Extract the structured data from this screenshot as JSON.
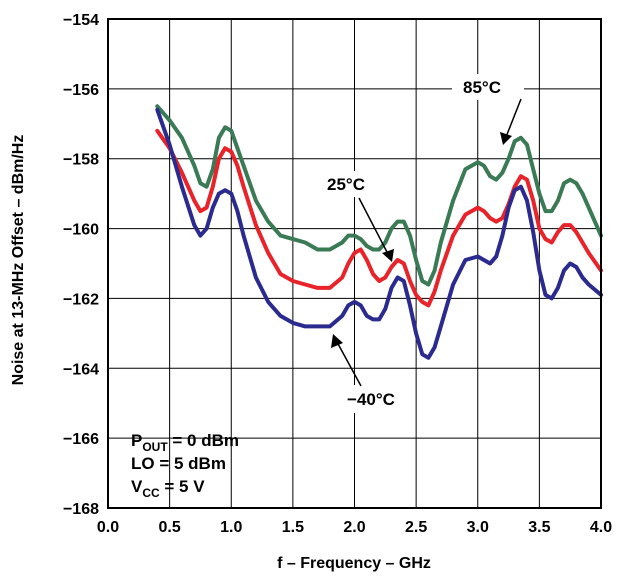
{
  "chart_data": {
    "type": "line",
    "xlabel": "f – Frequency – GHz",
    "ylabel": "Noise at 13-MHz Offset – dBm/Hz",
    "xlim": [
      0.0,
      4.0
    ],
    "ylim": [
      -168,
      -154
    ],
    "x_ticks": [
      "0.0",
      "0.5",
      "1.0",
      "1.5",
      "2.0",
      "2.5",
      "3.0",
      "3.5",
      "4.0"
    ],
    "y_ticks": [
      "−154",
      "−156",
      "−158",
      "−160",
      "−162",
      "−164",
      "−166",
      "−168"
    ],
    "grid": true,
    "series": [
      {
        "name": "85°C",
        "color": "#3a7a55",
        "x": [
          0.4,
          0.5,
          0.6,
          0.7,
          0.75,
          0.8,
          0.85,
          0.9,
          0.95,
          1.0,
          1.05,
          1.1,
          1.2,
          1.3,
          1.4,
          1.5,
          1.6,
          1.7,
          1.8,
          1.9,
          1.95,
          2.0,
          2.05,
          2.1,
          2.15,
          2.2,
          2.25,
          2.3,
          2.35,
          2.4,
          2.45,
          2.5,
          2.55,
          2.6,
          2.65,
          2.7,
          2.8,
          2.9,
          3.0,
          3.05,
          3.1,
          3.15,
          3.2,
          3.25,
          3.3,
          3.35,
          3.4,
          3.45,
          3.5,
          3.55,
          3.6,
          3.65,
          3.7,
          3.75,
          3.8,
          3.85,
          3.9,
          4.0
        ],
        "y": [
          -156.5,
          -156.9,
          -157.4,
          -158.2,
          -158.7,
          -158.8,
          -158.3,
          -157.4,
          -157.1,
          -157.2,
          -157.7,
          -158.2,
          -159.2,
          -159.8,
          -160.2,
          -160.3,
          -160.4,
          -160.6,
          -160.6,
          -160.4,
          -160.2,
          -160.2,
          -160.3,
          -160.5,
          -160.6,
          -160.6,
          -160.4,
          -160.0,
          -159.8,
          -159.8,
          -160.2,
          -160.9,
          -161.5,
          -161.6,
          -161.2,
          -160.4,
          -159.2,
          -158.3,
          -158.1,
          -158.2,
          -158.5,
          -158.6,
          -158.4,
          -158.0,
          -157.5,
          -157.4,
          -157.6,
          -158.3,
          -159.0,
          -159.5,
          -159.5,
          -159.2,
          -158.7,
          -158.6,
          -158.7,
          -159.0,
          -159.4,
          -160.2
        ]
      },
      {
        "name": "25°C",
        "color": "#e8232a",
        "x": [
          0.4,
          0.5,
          0.6,
          0.7,
          0.75,
          0.8,
          0.85,
          0.9,
          0.95,
          1.0,
          1.05,
          1.1,
          1.2,
          1.3,
          1.4,
          1.5,
          1.6,
          1.7,
          1.8,
          1.9,
          1.95,
          2.0,
          2.05,
          2.1,
          2.15,
          2.2,
          2.25,
          2.3,
          2.35,
          2.4,
          2.45,
          2.5,
          2.55,
          2.6,
          2.65,
          2.7,
          2.8,
          2.9,
          3.0,
          3.05,
          3.1,
          3.15,
          3.2,
          3.25,
          3.3,
          3.35,
          3.4,
          3.45,
          3.5,
          3.55,
          3.6,
          3.65,
          3.7,
          3.75,
          3.8,
          3.85,
          3.9,
          4.0
        ],
        "y": [
          -157.2,
          -157.7,
          -158.4,
          -159.2,
          -159.5,
          -159.4,
          -158.8,
          -158.0,
          -157.7,
          -157.8,
          -158.2,
          -158.8,
          -159.9,
          -160.7,
          -161.3,
          -161.5,
          -161.6,
          -161.7,
          -161.7,
          -161.4,
          -161.0,
          -160.7,
          -160.6,
          -160.9,
          -161.3,
          -161.5,
          -161.4,
          -161.1,
          -160.9,
          -161.0,
          -161.5,
          -161.9,
          -162.1,
          -162.2,
          -161.8,
          -161.2,
          -160.2,
          -159.6,
          -159.4,
          -159.5,
          -159.7,
          -159.8,
          -159.7,
          -159.3,
          -158.8,
          -158.5,
          -158.6,
          -159.2,
          -160.0,
          -160.3,
          -160.4,
          -160.1,
          -159.9,
          -159.9,
          -160.1,
          -160.4,
          -160.7,
          -161.2
        ]
      },
      {
        "name": "−40°C",
        "color": "#2b2b8f",
        "x": [
          0.4,
          0.5,
          0.6,
          0.7,
          0.75,
          0.8,
          0.85,
          0.9,
          0.95,
          1.0,
          1.05,
          1.1,
          1.2,
          1.3,
          1.4,
          1.5,
          1.6,
          1.7,
          1.8,
          1.9,
          1.95,
          2.0,
          2.05,
          2.1,
          2.15,
          2.2,
          2.25,
          2.3,
          2.35,
          2.4,
          2.45,
          2.5,
          2.55,
          2.6,
          2.65,
          2.7,
          2.8,
          2.9,
          3.0,
          3.05,
          3.1,
          3.15,
          3.2,
          3.25,
          3.3,
          3.35,
          3.4,
          3.45,
          3.5,
          3.55,
          3.6,
          3.65,
          3.7,
          3.75,
          3.8,
          3.85,
          3.9,
          4.0
        ],
        "y": [
          -156.6,
          -157.6,
          -158.8,
          -159.9,
          -160.2,
          -160.0,
          -159.4,
          -159.0,
          -158.9,
          -159.0,
          -159.5,
          -160.2,
          -161.4,
          -162.1,
          -162.5,
          -162.7,
          -162.8,
          -162.8,
          -162.8,
          -162.5,
          -162.2,
          -162.1,
          -162.2,
          -162.5,
          -162.6,
          -162.6,
          -162.3,
          -161.7,
          -161.4,
          -161.5,
          -162.2,
          -163.0,
          -163.6,
          -163.7,
          -163.4,
          -162.8,
          -161.6,
          -160.9,
          -160.8,
          -160.9,
          -161.0,
          -160.8,
          -160.2,
          -159.4,
          -158.9,
          -158.8,
          -159.2,
          -160.1,
          -161.2,
          -161.9,
          -162.0,
          -161.7,
          -161.2,
          -161.0,
          -161.1,
          -161.4,
          -161.6,
          -161.9
        ]
      }
    ],
    "annotations": [
      {
        "text": "85°C"
      },
      {
        "text": "25°C"
      },
      {
        "text": "−40°C"
      }
    ],
    "conditions": [
      {
        "main": "P",
        "sub": "OUT",
        "rest": " = 0 dBm"
      },
      {
        "main": "LO = 5 dBm",
        "sub": "",
        "rest": ""
      },
      {
        "main": "V",
        "sub": "CC",
        "rest": " = 5 V"
      }
    ]
  }
}
